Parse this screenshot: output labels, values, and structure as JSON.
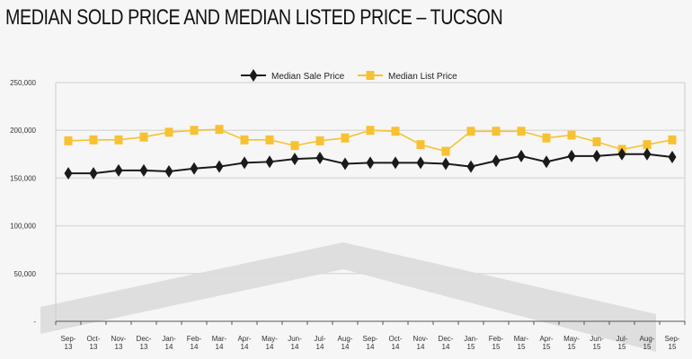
{
  "chart_data": {
    "type": "line",
    "title": "MEDIAN SOLD PRICE AND MEDIAN LISTED PRICE – TUCSON",
    "xlabel": "",
    "ylabel": "",
    "ylim": [
      0,
      250000
    ],
    "yticks": [
      0,
      50000,
      100000,
      150000,
      200000,
      250000
    ],
    "ytick_labels": [
      "-",
      "50,000",
      "100,000",
      "150,000",
      "200,000",
      "250,000"
    ],
    "grid": true,
    "legend_position": "top-center",
    "categories": [
      [
        "Sep-",
        "13"
      ],
      [
        "Oct-",
        "13"
      ],
      [
        "Nov-",
        "13"
      ],
      [
        "Dec-",
        "13"
      ],
      [
        "Jan-",
        "14"
      ],
      [
        "Feb-",
        "14"
      ],
      [
        "Mar-",
        "14"
      ],
      [
        "Apr-",
        "14"
      ],
      [
        "May-",
        "14"
      ],
      [
        "Jun-",
        "14"
      ],
      [
        "Jul-",
        "14"
      ],
      [
        "Aug-",
        "14"
      ],
      [
        "Sep-",
        "14"
      ],
      [
        "Oct-",
        "14"
      ],
      [
        "Nov-",
        "14"
      ],
      [
        "Dec-",
        "14"
      ],
      [
        "Jan-",
        "15"
      ],
      [
        "Feb-",
        "15"
      ],
      [
        "Mar-",
        "15"
      ],
      [
        "Apr-",
        "15"
      ],
      [
        "May-",
        "15"
      ],
      [
        "Jun-",
        "15"
      ],
      [
        "Jul-",
        "15"
      ],
      [
        "Aug-",
        "15"
      ],
      [
        "Sep-",
        "15"
      ]
    ],
    "series": [
      {
        "name": "Median Sale Price",
        "color": "#1a1a1a",
        "marker": "diamond",
        "values": [
          155000,
          155000,
          158000,
          158000,
          157000,
          160000,
          162000,
          166000,
          167000,
          170000,
          171000,
          165000,
          166000,
          166000,
          166000,
          165000,
          162000,
          168000,
          173000,
          167000,
          173000,
          173000,
          175000,
          175000,
          172000
        ]
      },
      {
        "name": "Median List Price",
        "color": "#f7c131",
        "marker": "square",
        "values": [
          189000,
          190000,
          190000,
          193000,
          198000,
          200000,
          201000,
          190000,
          190000,
          184000,
          189000,
          192000,
          200000,
          199000,
          185000,
          178000,
          199000,
          199000,
          199000,
          192000,
          195000,
          188000,
          180000,
          185000,
          190000
        ]
      }
    ]
  }
}
